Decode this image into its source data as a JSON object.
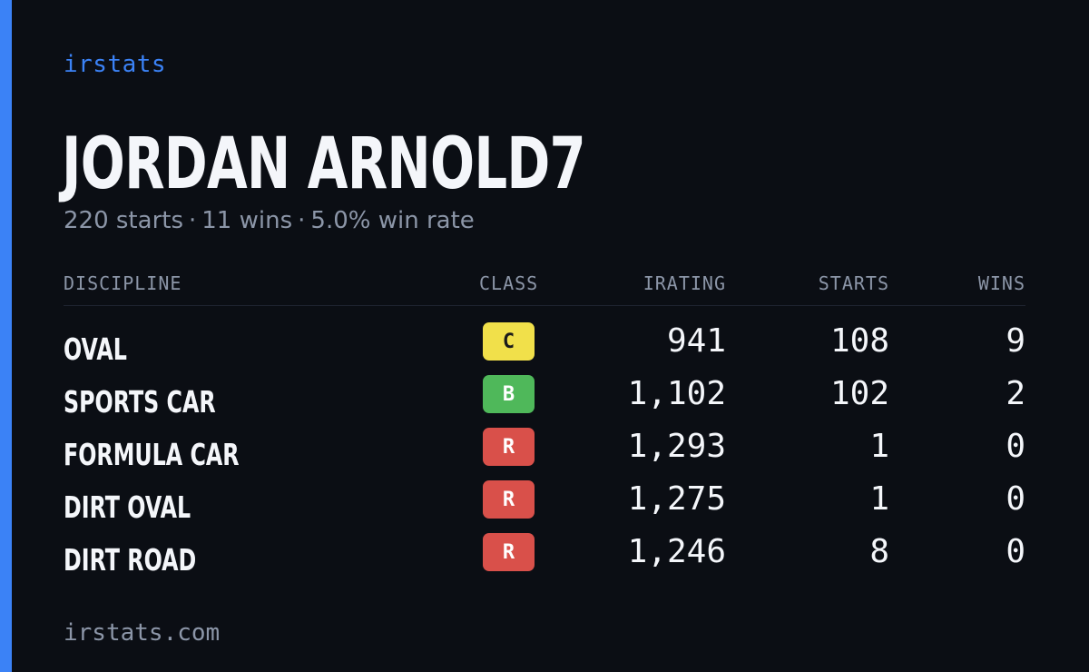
{
  "brand": "irstats",
  "driver": {
    "name": "JORDAN ARNOLD7"
  },
  "summary": {
    "starts_text": "220 starts",
    "wins_text": "11 wins",
    "win_rate_text": "5.0% win rate",
    "separator": "·"
  },
  "table": {
    "headers": {
      "discipline": "DISCIPLINE",
      "class": "CLASS",
      "irating": "IRATING",
      "starts": "STARTS",
      "wins": "WINS"
    },
    "rows": [
      {
        "discipline": "OVAL",
        "class": "C",
        "irating": "941",
        "starts": "108",
        "wins": "9"
      },
      {
        "discipline": "SPORTS CAR",
        "class": "B",
        "irating": "1,102",
        "starts": "102",
        "wins": "2"
      },
      {
        "discipline": "FORMULA CAR",
        "class": "R",
        "irating": "1,293",
        "starts": "1",
        "wins": "0"
      },
      {
        "discipline": "DIRT OVAL",
        "class": "R",
        "irating": "1,275",
        "starts": "1",
        "wins": "0"
      },
      {
        "discipline": "DIRT ROAD",
        "class": "R",
        "irating": "1,246",
        "starts": "8",
        "wins": "0"
      }
    ]
  },
  "class_colors": {
    "C": "#f1e04a",
    "B": "#4fb85a",
    "R": "#d9504a"
  },
  "accent_color": "#3b82f6",
  "footer": "irstats.com"
}
